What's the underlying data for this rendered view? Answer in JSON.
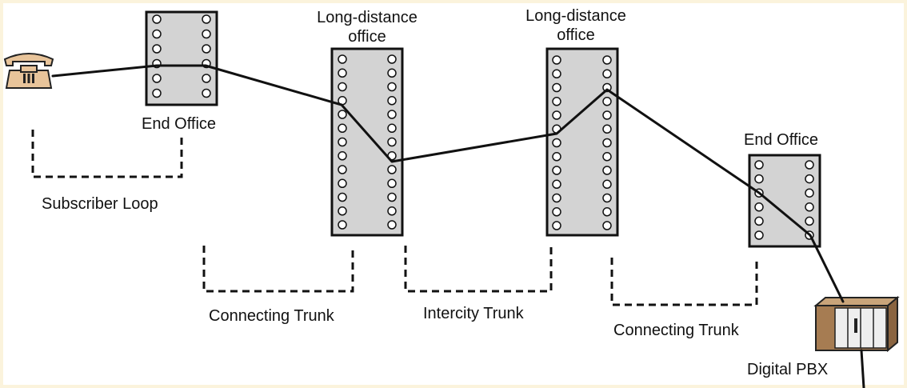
{
  "diagram": {
    "nodes": {
      "telephone": {
        "icon": "telephone-icon"
      },
      "end_office_left": {
        "label": "End Office"
      },
      "ld_office_1": {
        "label_line1": "Long-distance",
        "label_line2": "office"
      },
      "ld_office_2": {
        "label_line1": "Long-distance",
        "label_line2": "office"
      },
      "end_office_right": {
        "label": "End Office"
      },
      "pbx": {
        "label": "Digital PBX",
        "icon": "pbx-cabinet-icon"
      }
    },
    "segments": {
      "subscriber_loop": "Subscriber Loop",
      "connecting_trunk_left": "Connecting Trunk",
      "intercity_trunk": "Intercity Trunk",
      "connecting_trunk_right": "Connecting Trunk"
    },
    "colors": {
      "switch_fill": "#d3d3d3",
      "line": "#111111",
      "phone_body": "#e8c49a",
      "pbx_body": "#a67c52"
    }
  }
}
